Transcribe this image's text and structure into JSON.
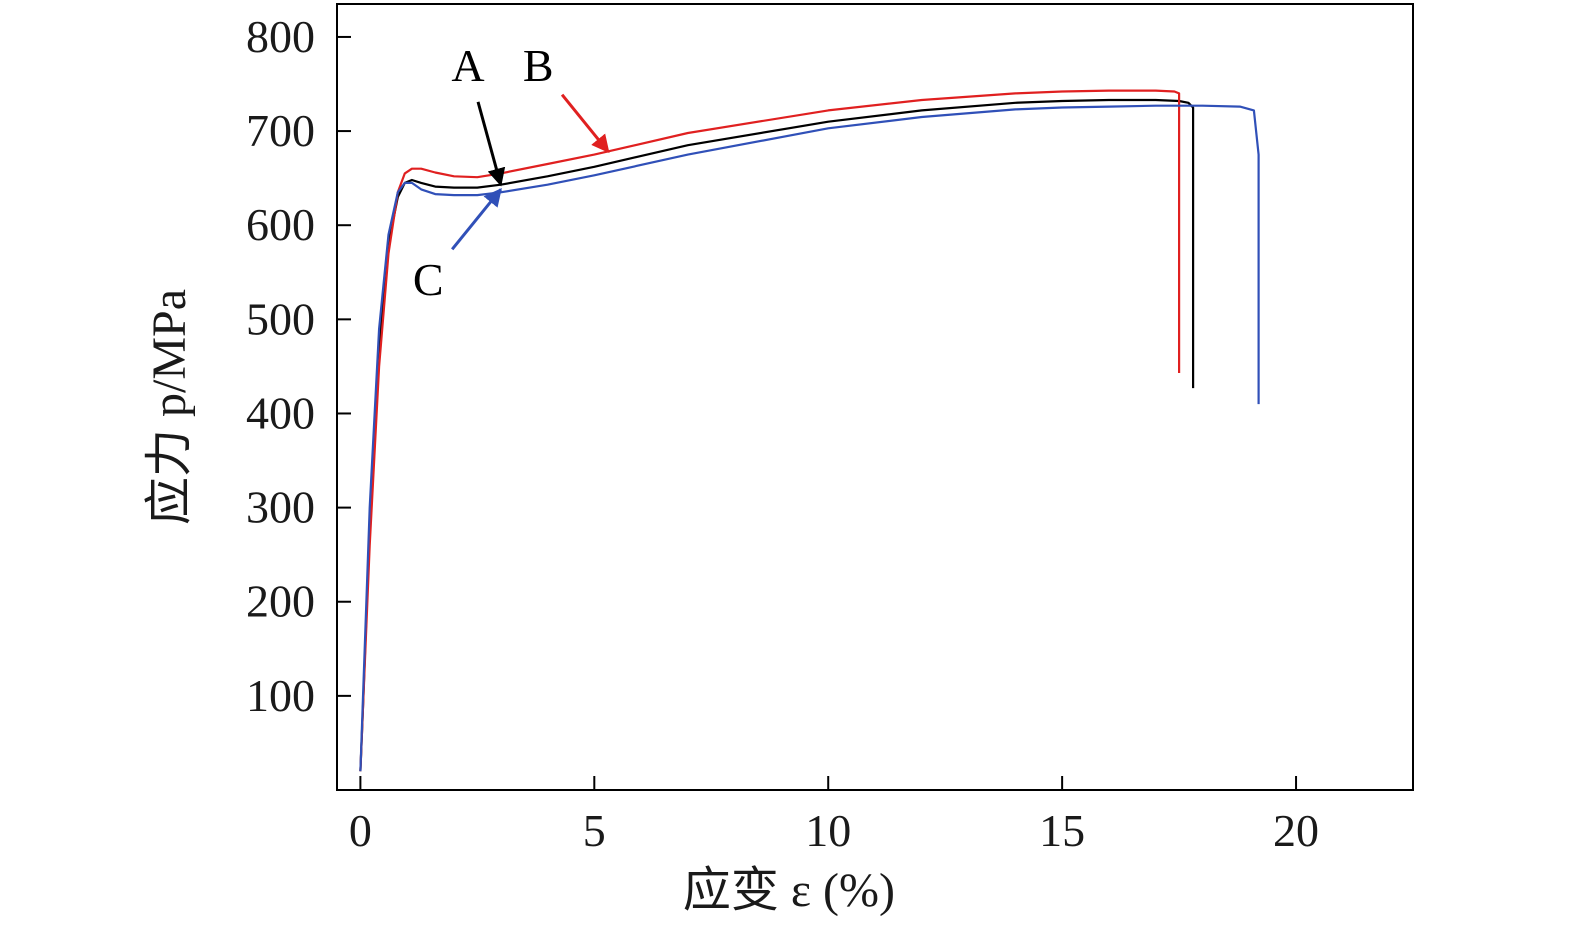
{
  "chart_data": {
    "type": "line",
    "xlabel": "应变 ε (%)",
    "ylabel": "应力 p/MPa",
    "xlim": [
      -0.5,
      22.5
    ],
    "ylim": [
      0,
      835
    ],
    "xticks": [
      0,
      5,
      10,
      15,
      20
    ],
    "yticks": [
      100,
      200,
      300,
      400,
      500,
      600,
      700,
      800
    ],
    "grid": false,
    "colors": {
      "A": "#000000",
      "B": "#e02020",
      "C": "#3050b8"
    },
    "series": [
      {
        "name": "A",
        "color": "#000000",
        "x": [
          0.0,
          0.05,
          0.2,
          0.4,
          0.6,
          0.8,
          0.95,
          1.1,
          1.3,
          1.6,
          2.0,
          2.5,
          3.0,
          4.0,
          5.0,
          7.0,
          10.0,
          12.0,
          14.0,
          15.0,
          16.0,
          17.0,
          17.5,
          17.7,
          17.8,
          17.8
        ],
        "y": [
          20,
          80,
          280,
          470,
          580,
          630,
          645,
          648,
          645,
          641,
          640,
          640,
          643,
          652,
          662,
          685,
          710,
          722,
          730,
          732,
          733,
          733,
          732,
          730,
          725,
          427
        ]
      },
      {
        "name": "B",
        "color": "#e02020",
        "x": [
          0.0,
          0.05,
          0.2,
          0.4,
          0.6,
          0.8,
          0.95,
          1.1,
          1.3,
          1.6,
          2.0,
          2.5,
          3.0,
          4.0,
          5.0,
          7.0,
          10.0,
          12.0,
          14.0,
          15.0,
          16.0,
          17.0,
          17.4,
          17.5,
          17.5
        ],
        "y": [
          20,
          80,
          260,
          450,
          570,
          635,
          655,
          660,
          660,
          656,
          652,
          651,
          655,
          665,
          675,
          698,
          722,
          733,
          740,
          742,
          743,
          743,
          742,
          740,
          443
        ]
      },
      {
        "name": "C",
        "color": "#3050b8",
        "x": [
          0.0,
          0.05,
          0.2,
          0.4,
          0.6,
          0.8,
          0.95,
          1.1,
          1.3,
          1.6,
          2.0,
          2.5,
          3.0,
          4.0,
          5.0,
          7.0,
          10.0,
          12.0,
          14.0,
          15.0,
          16.0,
          17.0,
          18.0,
          18.8,
          19.1,
          19.2,
          19.2
        ],
        "y": [
          20,
          90,
          300,
          490,
          590,
          635,
          645,
          645,
          638,
          633,
          632,
          632,
          635,
          643,
          653,
          675,
          703,
          715,
          723,
          725,
          726,
          727,
          727,
          726,
          722,
          675,
          410
        ]
      }
    ],
    "annotations": [
      {
        "label": "A",
        "series": "A",
        "text_at": [
          2.3,
          770
        ],
        "arrow_to": [
          3.0,
          643
        ]
      },
      {
        "label": "B",
        "series": "B",
        "text_at": [
          3.8,
          770
        ],
        "arrow_to": [
          5.3,
          678
        ]
      },
      {
        "label": "C",
        "series": "C",
        "text_at": [
          1.45,
          543
        ],
        "arrow_to": [
          3.0,
          638
        ]
      }
    ]
  }
}
